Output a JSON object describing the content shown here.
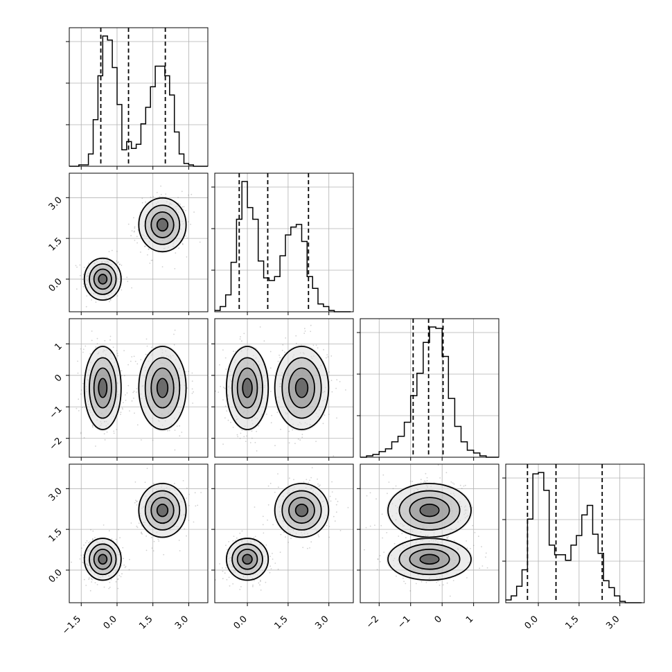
{
  "chart_data": {
    "type": "corner",
    "title": "",
    "dimensions": 4,
    "axis_ranges": [
      [
        -2.0,
        3.8
      ],
      [
        -1.2,
        3.9
      ],
      [
        -2.6,
        1.8
      ],
      [
        -1.2,
        3.9
      ]
    ],
    "ticks": [
      {
        "values": [
          -1.5,
          0.0,
          1.5,
          3.0
        ],
        "labels": [
          "−1.5",
          "0.0",
          "1.5",
          "3.0"
        ]
      },
      {
        "values": [
          0.0,
          1.5,
          3.0
        ],
        "labels": [
          "0.0",
          "1.5",
          "3.0"
        ]
      },
      {
        "values": [
          -2,
          -1,
          0,
          1
        ],
        "labels": [
          "−2",
          "−1",
          "0",
          "1"
        ]
      },
      {
        "values": [
          0.0,
          1.5,
          3.0
        ],
        "labels": [
          "0.0",
          "1.5",
          "3.0"
        ]
      }
    ],
    "quantiles": [
      [
        -0.68,
        0.48,
        2.02
      ],
      [
        -0.3,
        0.75,
        2.25
      ],
      [
        -0.92,
        -0.43,
        0.03
      ],
      [
        -0.4,
        0.65,
        2.35
      ]
    ],
    "histograms": [
      {
        "edges": [
          -2.0,
          -1.8,
          -1.6,
          -1.4,
          -1.2,
          -1.0,
          -0.8,
          -0.6,
          -0.4,
          -0.2,
          0.0,
          0.2,
          0.4,
          0.6,
          0.8,
          1.0,
          1.2,
          1.4,
          1.6,
          1.8,
          2.0,
          2.2,
          2.4,
          2.6,
          2.8,
          3.0,
          3.2,
          3.4,
          3.6,
          3.8
        ],
        "counts": [
          0,
          0,
          0.01,
          0.01,
          0.09,
          0.34,
          0.66,
          0.95,
          0.92,
          0.72,
          0.45,
          0.12,
          0.18,
          0.13,
          0.16,
          0.31,
          0.43,
          0.58,
          0.73,
          0.73,
          0.66,
          0.52,
          0.25,
          0.09,
          0.02,
          0.01,
          0.0,
          0,
          0
        ]
      },
      {
        "edges": [
          -1.2,
          -1.0,
          -0.8,
          -0.6,
          -0.4,
          -0.2,
          0.0,
          0.2,
          0.4,
          0.6,
          0.8,
          1.0,
          1.2,
          1.4,
          1.6,
          1.8,
          2.0,
          2.2,
          2.4,
          2.6,
          2.8,
          3.0,
          3.2,
          3.4,
          3.6,
          3.8
        ],
        "counts": [
          0.01,
          0.04,
          0.13,
          0.38,
          0.71,
          1.0,
          0.8,
          0.71,
          0.39,
          0.26,
          0.24,
          0.27,
          0.43,
          0.59,
          0.65,
          0.67,
          0.54,
          0.27,
          0.18,
          0.06,
          0.04,
          0.01,
          0,
          0,
          0
        ]
      },
      {
        "edges": [
          -2.6,
          -2.4,
          -2.2,
          -2.0,
          -1.8,
          -1.6,
          -1.4,
          -1.2,
          -1.0,
          -0.8,
          -0.6,
          -0.4,
          -0.2,
          0.0,
          0.2,
          0.4,
          0.6,
          0.8,
          1.0,
          1.2,
          1.4,
          1.6,
          1.8
        ],
        "counts": [
          0,
          0.01,
          0.02,
          0.04,
          0.06,
          0.11,
          0.15,
          0.25,
          0.44,
          0.6,
          0.82,
          0.93,
          0.92,
          0.72,
          0.42,
          0.22,
          0.11,
          0.05,
          0.03,
          0.01,
          0,
          0
        ]
      },
      {
        "edges": [
          -1.2,
          -1.0,
          -0.8,
          -0.6,
          -0.4,
          -0.2,
          0.0,
          0.2,
          0.4,
          0.6,
          0.8,
          1.0,
          1.2,
          1.4,
          1.6,
          1.8,
          2.0,
          2.2,
          2.4,
          2.6,
          2.8,
          3.0,
          3.2,
          3.4,
          3.6,
          3.8
        ],
        "counts": [
          0.02,
          0.05,
          0.12,
          0.24,
          0.61,
          0.94,
          0.95,
          0.82,
          0.42,
          0.35,
          0.35,
          0.31,
          0.42,
          0.49,
          0.64,
          0.71,
          0.5,
          0.36,
          0.16,
          0.11,
          0.05,
          0.01,
          0,
          0,
          0
        ]
      }
    ],
    "modes": [
      {
        "weight": 0.5,
        "mean": [
          -0.6,
          0.0,
          -0.4,
          0.4
        ],
        "sd": [
          0.35,
          0.35,
          0.6,
          0.35
        ]
      },
      {
        "weight": 0.5,
        "mean": [
          1.9,
          2.0,
          -0.4,
          2.2
        ],
        "sd": [
          0.45,
          0.45,
          0.6,
          0.45
        ]
      }
    ]
  }
}
